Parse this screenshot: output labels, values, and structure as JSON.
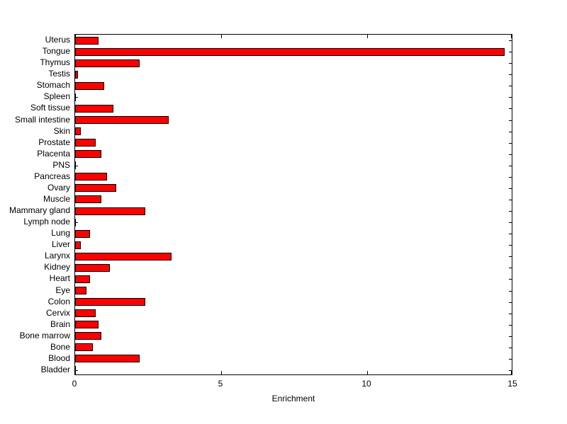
{
  "chart_data": {
    "type": "bar",
    "orientation": "horizontal",
    "title": "",
    "xlabel": "Enrichment",
    "ylabel": "",
    "xlim": [
      0,
      15
    ],
    "xticks": [
      0,
      5,
      10,
      15
    ],
    "grid": false,
    "legend": "none",
    "bar_color": "#ff0000",
    "bar_edge_color": "#000000",
    "categories": [
      "Uterus",
      "Tongue",
      "Thymus",
      "Testis",
      "Stomach",
      "Spleen",
      "Soft tissue",
      "Small intestine",
      "Skin",
      "Prostate",
      "Placenta",
      "PNS",
      "Pancreas",
      "Ovary",
      "Muscle",
      "Mammary gland",
      "Lymph node",
      "Lung",
      "Liver",
      "Larynx",
      "Kidney",
      "Heart",
      "Eye",
      "Colon",
      "Cervix",
      "Brain",
      "Bone marrow",
      "Bone",
      "Blood",
      "Bladder"
    ],
    "values": [
      0.8,
      14.7,
      2.2,
      0.1,
      1.0,
      0,
      1.3,
      3.2,
      0.2,
      0.7,
      0.9,
      0,
      1.1,
      1.4,
      0.9,
      2.4,
      0,
      0.5,
      0.2,
      3.3,
      1.2,
      0.5,
      0.4,
      2.4,
      0.7,
      0.8,
      0.9,
      0.6,
      2.2,
      0
    ]
  }
}
